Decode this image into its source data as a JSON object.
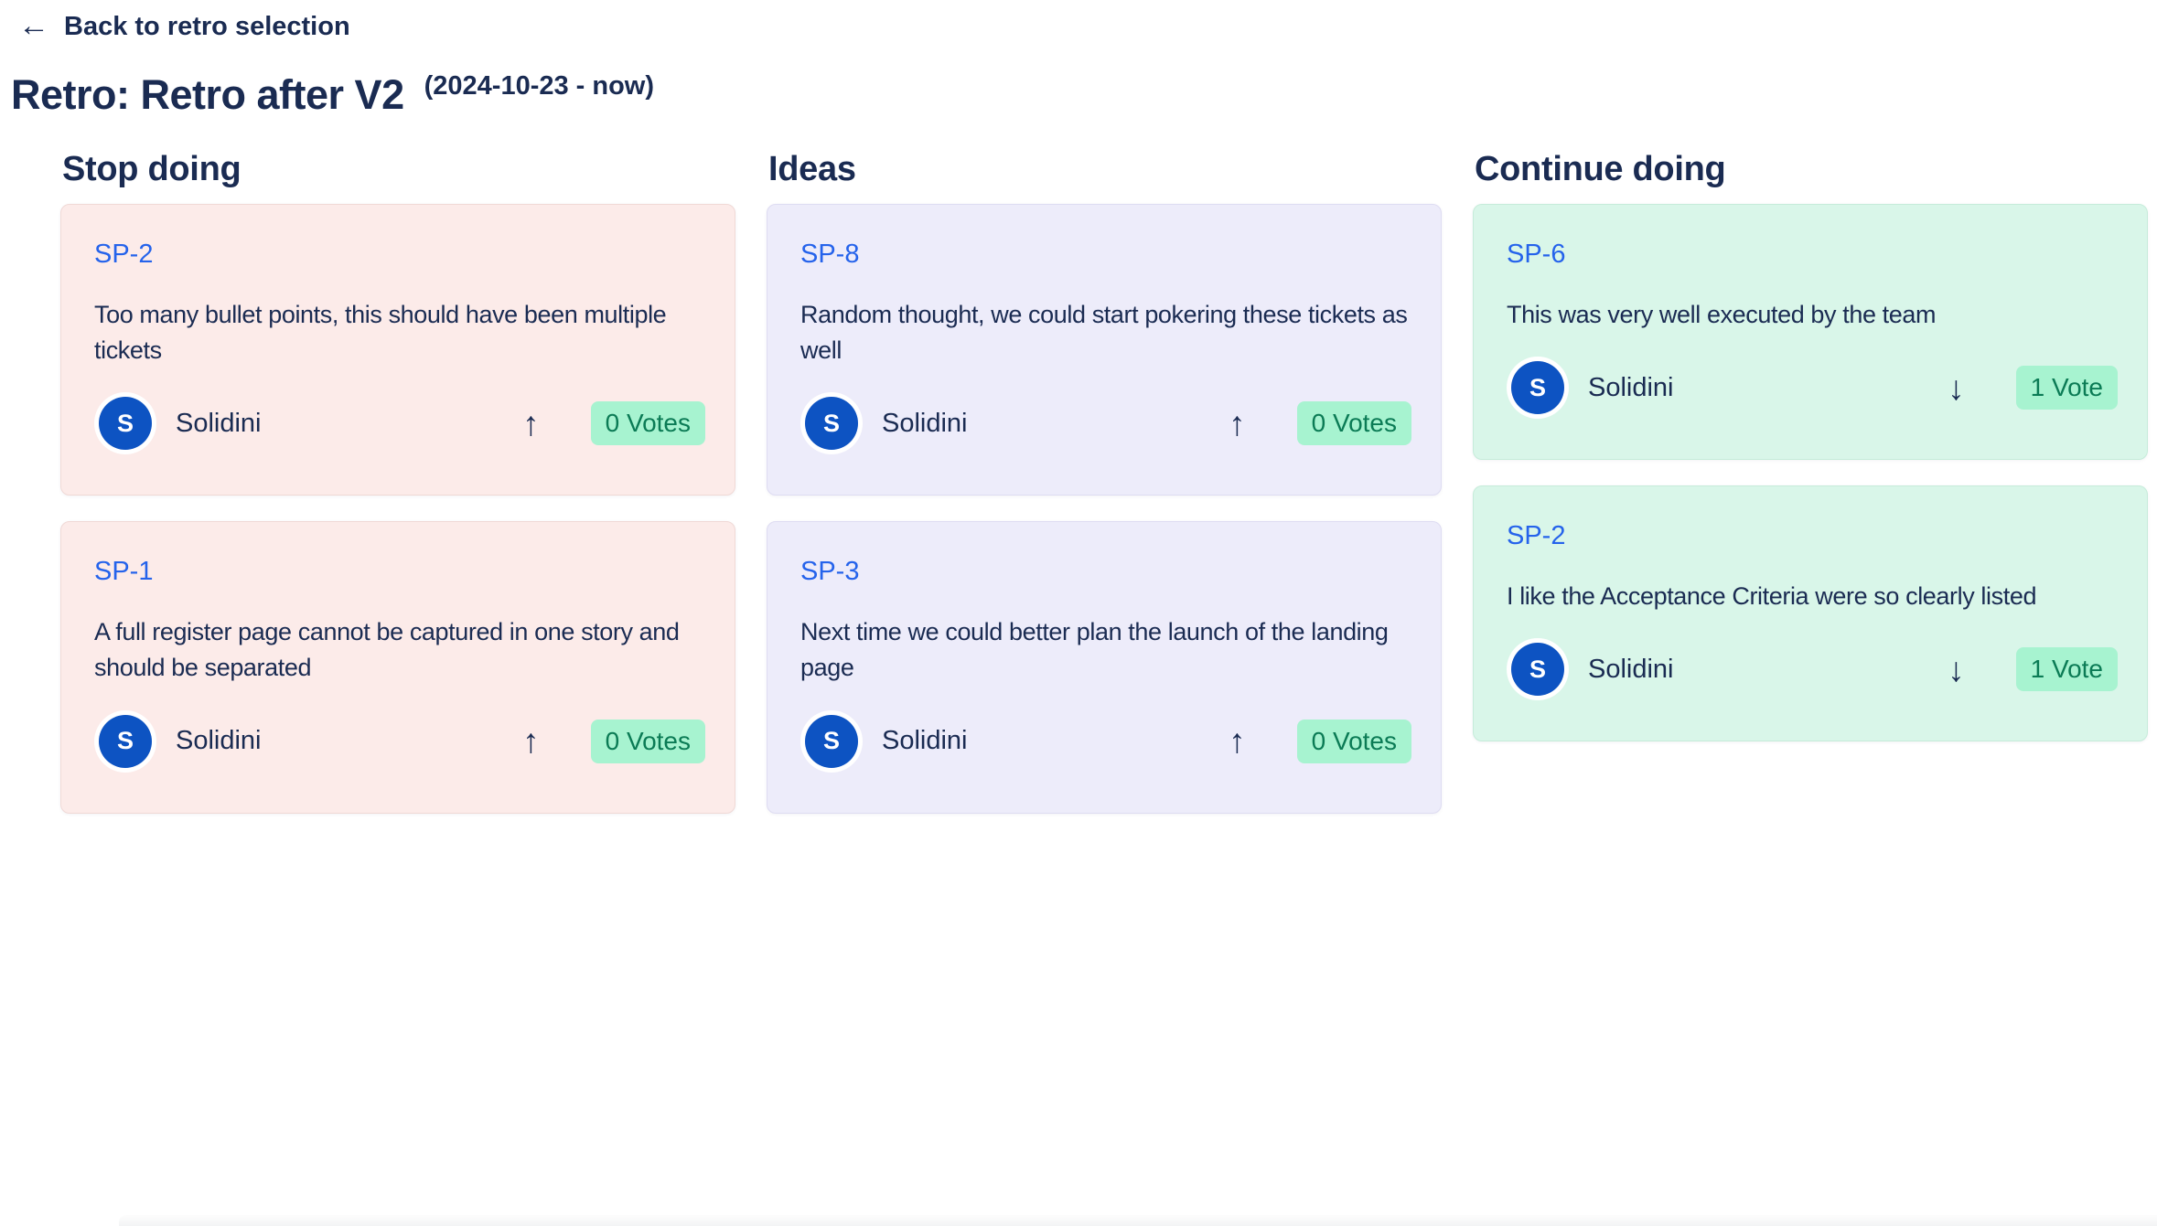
{
  "header": {
    "back_icon": "←",
    "back_label": "Back to retro selection",
    "title": "Retro: Retro after V2",
    "date_range": "(2024-10-23 - now)"
  },
  "colors": {
    "text_navy": "#1a2b52",
    "link_blue": "#2563eb",
    "avatar_blue": "#0d53c2",
    "card_red_bg": "#fcebe9",
    "card_purple_bg": "#edecfa",
    "card_green_bg": "#d9f6e9",
    "badge_bg": "#a7f3d0",
    "badge_text": "#0b7b55"
  },
  "columns": [
    {
      "title": "Stop doing",
      "theme": "red",
      "cards": [
        {
          "ticket": "SP-2",
          "text": "Too many bullet points, this should have been multiple tickets",
          "author": "Solidini",
          "author_initial": "S",
          "vote_icon": "↑",
          "vote_direction": "up",
          "votes_label": "0 Votes"
        },
        {
          "ticket": "SP-1",
          "text": "A full register page cannot be captured in one story and should be separated",
          "author": "Solidini",
          "author_initial": "S",
          "vote_icon": "↑",
          "vote_direction": "up",
          "votes_label": "0 Votes"
        }
      ]
    },
    {
      "title": "Ideas",
      "theme": "purple",
      "cards": [
        {
          "ticket": "SP-8",
          "text": "Random thought, we could start pokering these tickets as well",
          "author": "Solidini",
          "author_initial": "S",
          "vote_icon": "↑",
          "vote_direction": "up",
          "votes_label": "0 Votes"
        },
        {
          "ticket": "SP-3",
          "text": "Next time we could better plan the launch of the landing page",
          "author": "Solidini",
          "author_initial": "S",
          "vote_icon": "↑",
          "vote_direction": "up",
          "votes_label": "0 Votes"
        }
      ]
    },
    {
      "title": "Continue doing",
      "theme": "green",
      "cards": [
        {
          "ticket": "SP-6",
          "text": "This was very well executed by the team",
          "author": "Solidini",
          "author_initial": "S",
          "vote_icon": "↓",
          "vote_direction": "down",
          "votes_label": "1 Vote"
        },
        {
          "ticket": "SP-2",
          "text": "I like the Acceptance Criteria were so clearly listed",
          "author": "Solidini",
          "author_initial": "S",
          "vote_icon": "↓",
          "vote_direction": "down",
          "votes_label": "1 Vote"
        }
      ]
    }
  ]
}
